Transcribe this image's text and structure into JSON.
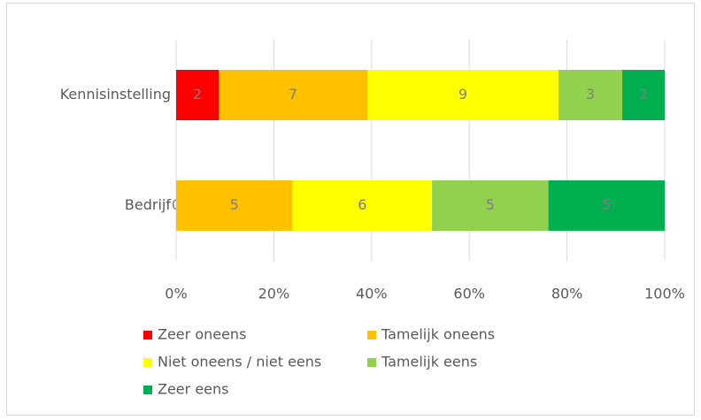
{
  "chart_data": {
    "type": "bar",
    "orientation": "horizontal",
    "stack": "percent",
    "categories": [
      "Kennisinstelling",
      "Bedrijf"
    ],
    "series": [
      {
        "name": "Zeer oneens",
        "color": "#ff0000",
        "values": [
          2,
          0
        ]
      },
      {
        "name": "Tamelijk oneens",
        "color": "#ffc000",
        "values": [
          7,
          5
        ]
      },
      {
        "name": "Niet oneens / niet eens",
        "color": "#ffff00",
        "values": [
          9,
          6
        ]
      },
      {
        "name": "Tamelijk eens",
        "color": "#92d050",
        "values": [
          3,
          5
        ]
      },
      {
        "name": "Zeer eens",
        "color": "#00b050",
        "values": [
          2,
          5
        ]
      }
    ],
    "xlim": [
      0,
      100
    ],
    "xticks": [
      {
        "value": 0,
        "label": "0%"
      },
      {
        "value": 20,
        "label": "20%"
      },
      {
        "value": 40,
        "label": "40%"
      },
      {
        "value": 60,
        "label": "60%"
      },
      {
        "value": 80,
        "label": "80%"
      },
      {
        "value": 100,
        "label": "100%"
      }
    ],
    "grid": true,
    "legend": "bottom"
  }
}
